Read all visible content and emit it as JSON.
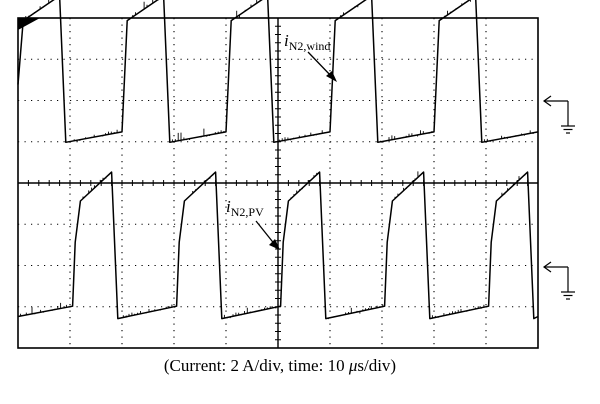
{
  "caption": {
    "prefix": "(Current: 2 A/div, time: 10 ",
    "mu": "μ",
    "suffix": "s/div)"
  },
  "chart_data": [
    {
      "type": "line",
      "channel": "top",
      "label_main": "i",
      "label_sub": "N2,wind",
      "x_unit": "μs",
      "y_unit": "A",
      "period_us": 20,
      "x_range_us": [
        0,
        100
      ],
      "series": [
        {
          "name": "i_N2,wind",
          "x": [
            0,
            1.0,
            8.0,
            9.2,
            20.0,
            21.0,
            28.0,
            29.2,
            40.0,
            41.0,
            48.0,
            49.2,
            60.0,
            61.0,
            68.0,
            69.2,
            80.0,
            81.0,
            88.0,
            89.2,
            100.0
          ],
          "y": [
            0.8,
            3.9,
            5.1,
            -2.0,
            -1.5,
            3.9,
            5.1,
            -2.0,
            -1.5,
            3.9,
            5.1,
            -2.0,
            -1.5,
            3.9,
            5.1,
            -2.0,
            -1.5,
            3.9,
            5.1,
            -2.0,
            -1.5
          ]
        }
      ]
    },
    {
      "type": "line",
      "channel": "bottom",
      "label_main": "i",
      "label_sub": "N2,PV",
      "x_unit": "μs",
      "y_unit": "A",
      "period_us": 20,
      "x_range_us": [
        0,
        100
      ],
      "series": [
        {
          "name": "i_N2,PV",
          "x": [
            0,
            10.5,
            11.0,
            12.0,
            18.0,
            19.2,
            30.5,
            31.0,
            32.0,
            38.0,
            39.2,
            50.5,
            51.0,
            52.0,
            58.0,
            59.2,
            70.5,
            71.0,
            72.0,
            78.0,
            79.2,
            90.5,
            91.0,
            92.0,
            98.0,
            99.2,
            100.0
          ],
          "y": [
            -2.4,
            -1.9,
            1.2,
            3.2,
            4.6,
            -2.5,
            -1.9,
            1.2,
            3.2,
            4.6,
            -2.5,
            -1.9,
            1.2,
            3.2,
            4.6,
            -2.5,
            -1.9,
            1.2,
            3.2,
            4.6,
            -2.5,
            -1.9,
            1.2,
            3.2,
            4.6,
            -2.5,
            -2.4
          ]
        }
      ]
    }
  ]
}
